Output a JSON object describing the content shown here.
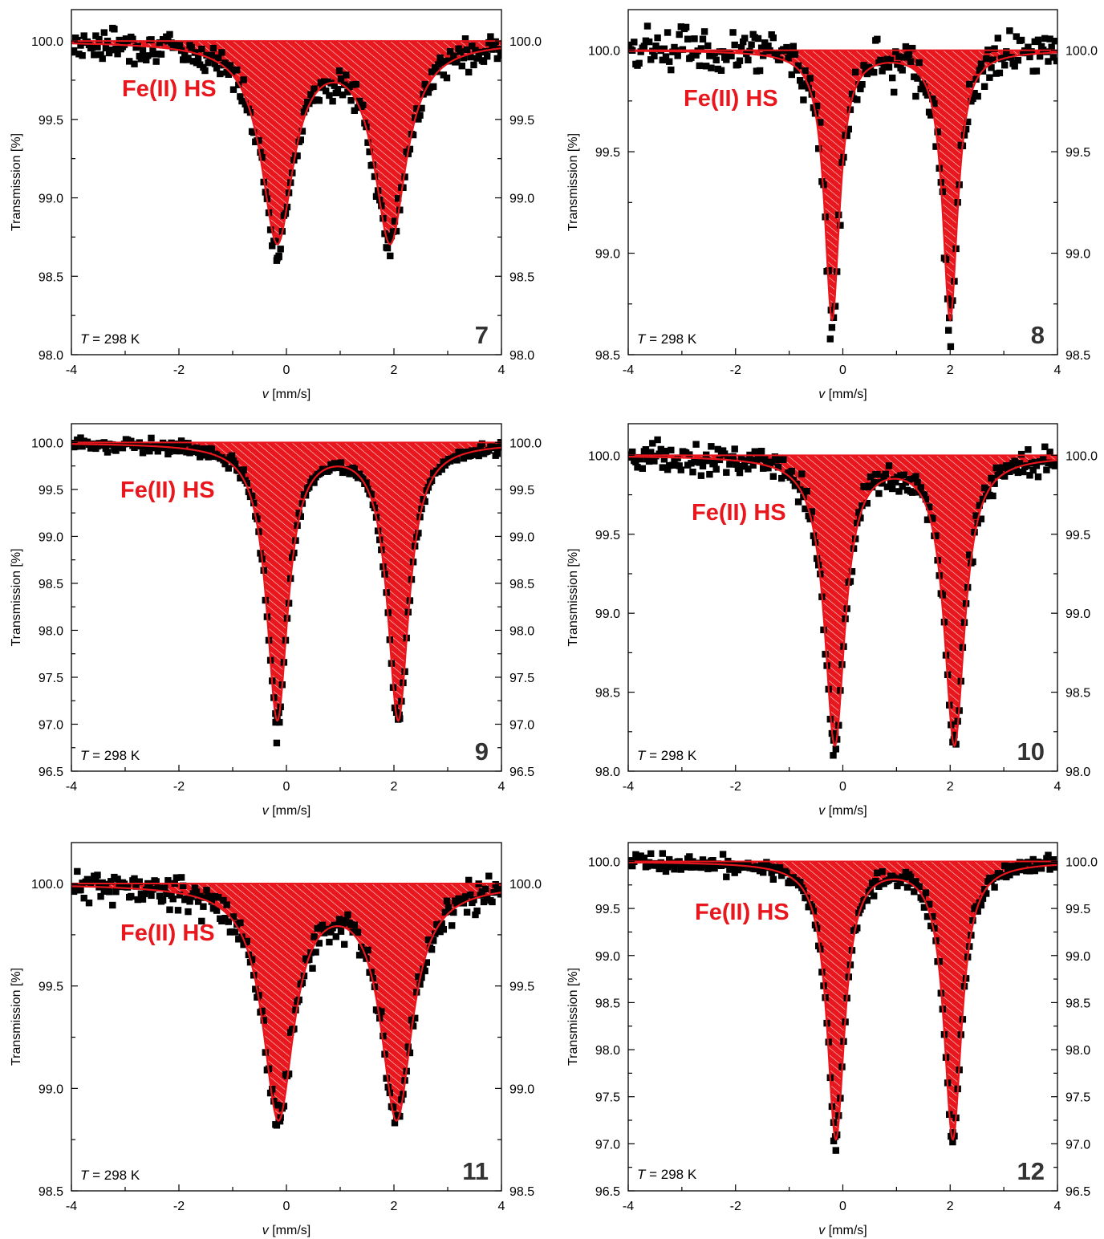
{
  "colors": {
    "fit": "#e8171d",
    "hatch": "#ffffff",
    "points": "#000000",
    "frame": "#000000"
  },
  "chart_data": [
    {
      "type": "scatter",
      "panel_id": "7",
      "species_label": "Fe(II) HS",
      "temperature_label": "T = 298 K",
      "xlabel": "v [mm/s]",
      "ylabel": "Transmission [%]",
      "xlim": [
        -4,
        4
      ],
      "ylim": [
        98.0,
        100.2
      ],
      "x_ticks": [
        "-4",
        "-2",
        "0",
        "2",
        "4"
      ],
      "y_ticks": [
        "98.0",
        "98.5",
        "99.0",
        "99.5",
        "100.0"
      ],
      "right_ticks": [
        "98.0",
        "98.5",
        "99.0",
        "99.5",
        "100.0"
      ],
      "fit": {
        "baseline": 100.0,
        "peaks": [
          {
            "position": -0.17,
            "depth": 1.26,
            "hwhm": 0.36
          },
          {
            "position": 1.93,
            "depth": 1.26,
            "hwhm": 0.36
          }
        ]
      },
      "noise": 0.06,
      "seed": 7,
      "extra_points": [
        {
          "x": -0.18,
          "y": 98.6
        },
        {
          "x": -0.14,
          "y": 98.63
        },
        {
          "x": 1.93,
          "y": 98.63
        },
        {
          "x": 1.88,
          "y": 98.68
        }
      ]
    },
    {
      "type": "scatter",
      "panel_id": "8",
      "species_label": "Fe(II) HS",
      "temperature_label": "T = 298 K",
      "xlabel": "v [mm/s]",
      "ylabel": "Transmission [%]",
      "xlim": [
        -4,
        4
      ],
      "ylim": [
        98.5,
        100.2
      ],
      "x_ticks": [
        "-4",
        "-2",
        "0",
        "2",
        "4"
      ],
      "y_ticks": [
        "98.5",
        "99.0",
        "99.5",
        "100.0"
      ],
      "right_ticks": [
        "98.5",
        "99.0",
        "99.5",
        "100.0"
      ],
      "fit": {
        "baseline": 100.0,
        "peaks": [
          {
            "position": -0.2,
            "depth": 1.32,
            "hwhm": 0.17
          },
          {
            "position": 2.0,
            "depth": 1.32,
            "hwhm": 0.17
          }
        ]
      },
      "noise": 0.07,
      "seed": 8,
      "extra_points": [
        {
          "x": 1.97,
          "y": 98.62
        },
        {
          "x": 2.01,
          "y": 98.54
        },
        {
          "x": -0.22,
          "y": 98.72
        }
      ]
    },
    {
      "type": "scatter",
      "panel_id": "9",
      "species_label": "Fe(II) HS",
      "temperature_label": "T = 298 K",
      "xlabel": "v [mm/s]",
      "ylabel": "Transmission [%]",
      "xlim": [
        -4,
        4
      ],
      "ylim": [
        96.5,
        100.2
      ],
      "x_ticks": [
        "-4",
        "-2",
        "0",
        "2",
        "4"
      ],
      "y_ticks": [
        "96.5",
        "97.0",
        "97.5",
        "98.0",
        "98.5",
        "99.0",
        "99.5",
        "100.0"
      ],
      "right_ticks": [
        "96.5",
        "97.0",
        "97.5",
        "98.0",
        "98.5",
        "99.0",
        "99.5",
        "100.0"
      ],
      "fit": {
        "baseline": 100.0,
        "peaks": [
          {
            "position": -0.17,
            "depth": 2.93,
            "hwhm": 0.24
          },
          {
            "position": 2.08,
            "depth": 2.93,
            "hwhm": 0.24
          }
        ]
      },
      "noise": 0.05,
      "seed": 9,
      "extra_points": [
        {
          "x": -0.18,
          "y": 96.8
        },
        {
          "x": -0.2,
          "y": 97.02
        },
        {
          "x": -0.13,
          "y": 97.02
        },
        {
          "x": 2.1,
          "y": 97.1
        }
      ]
    },
    {
      "type": "scatter",
      "panel_id": "10",
      "species_label": "Fe(II) HS",
      "temperature_label": "T = 298 K",
      "xlabel": "v [mm/s]",
      "ylabel": "Transmission [%]",
      "xlim": [
        -4,
        4
      ],
      "ylim": [
        98.0,
        100.2
      ],
      "x_ticks": [
        "-4",
        "-2",
        "0",
        "2",
        "4"
      ],
      "y_ticks": [
        "98.0",
        "98.5",
        "99.0",
        "99.5",
        "100.0"
      ],
      "right_ticks": [
        "98.0",
        "98.5",
        "99.0",
        "99.5",
        "100.0"
      ],
      "fit": {
        "baseline": 100.0,
        "peaks": [
          {
            "position": -0.15,
            "depth": 1.82,
            "hwhm": 0.23
          },
          {
            "position": 2.08,
            "depth": 1.82,
            "hwhm": 0.23
          }
        ]
      },
      "noise": 0.06,
      "seed": 10,
      "extra_points": [
        {
          "x": -0.18,
          "y": 98.1
        },
        {
          "x": -0.13,
          "y": 98.14
        },
        {
          "x": 2.07,
          "y": 98.2
        }
      ]
    },
    {
      "type": "scatter",
      "panel_id": "11",
      "species_label": "Fe(II) HS",
      "temperature_label": "T = 298 K",
      "xlabel": "v [mm/s]",
      "ylabel": "Transmission [%]",
      "xlim": [
        -4,
        4
      ],
      "ylim": [
        98.5,
        100.2
      ],
      "x_ticks": [
        "-4",
        "-2",
        "0",
        "2",
        "4"
      ],
      "y_ticks": [
        "98.5",
        "99.0",
        "99.5",
        "100.0"
      ],
      "right_ticks": [
        "98.5",
        "99.0",
        "99.5",
        "100.0"
      ],
      "fit": {
        "baseline": 100.0,
        "peaks": [
          {
            "position": -0.15,
            "depth": 1.13,
            "hwhm": 0.35
          },
          {
            "position": 2.05,
            "depth": 1.13,
            "hwhm": 0.35
          }
        ]
      },
      "noise": 0.05,
      "seed": 11,
      "extra_points": [
        {
          "x": -0.18,
          "y": 98.82
        },
        {
          "x": -0.12,
          "y": 98.84
        }
      ]
    },
    {
      "type": "scatter",
      "panel_id": "12",
      "species_label": "Fe(II) HS",
      "temperature_label": "T = 298 K",
      "xlabel": "v [mm/s]",
      "ylabel": "Transmission [%]",
      "xlim": [
        -4,
        4
      ],
      "ylim": [
        96.5,
        100.2
      ],
      "x_ticks": [
        "-4",
        "-2",
        "0",
        "2",
        "4"
      ],
      "y_ticks": [
        "96.5",
        "97.0",
        "97.5",
        "98.0",
        "98.5",
        "99.0",
        "99.5",
        "100.0"
      ],
      "right_ticks": [
        "96.5",
        "97.0",
        "97.5",
        "98.0",
        "98.5",
        "99.0",
        "99.5",
        "100.0"
      ],
      "fit": {
        "baseline": 100.0,
        "peaks": [
          {
            "position": -0.13,
            "depth": 2.93,
            "hwhm": 0.2
          },
          {
            "position": 2.05,
            "depth": 2.93,
            "hwhm": 0.2
          }
        ]
      },
      "noise": 0.06,
      "seed": 12,
      "extra_points": [
        {
          "x": -0.13,
          "y": 96.93
        },
        {
          "x": -0.17,
          "y": 97.03
        },
        {
          "x": 2.05,
          "y": 97.12
        }
      ]
    }
  ]
}
